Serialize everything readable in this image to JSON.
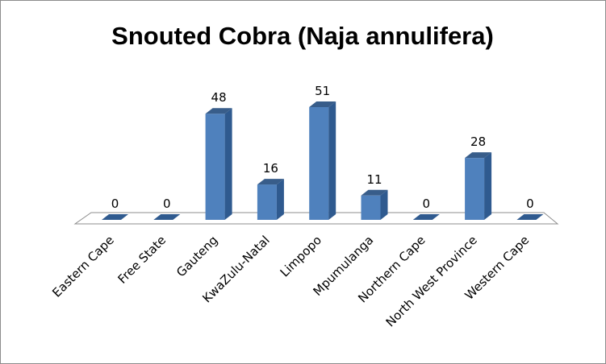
{
  "chart_data": {
    "type": "bar",
    "title": "Snouted Cobra (Naja annulifera)",
    "categories": [
      "Eastern Cape",
      "Free State",
      "Gauteng",
      "KwaZulu-Natal",
      "Limpopo",
      "Mpumulanga",
      "Northern Cape",
      "North West Province",
      "Western Cape"
    ],
    "series": [
      {
        "values": [
          0,
          0,
          48,
          16,
          51,
          11,
          0,
          28,
          0
        ],
        "color": "#4f81bd"
      }
    ],
    "data_labels": [
      "0",
      "0",
      "48",
      "16",
      "51",
      "11",
      "0",
      "28",
      "0"
    ],
    "ylim": [
      0,
      51
    ],
    "grid": false,
    "legend": "none",
    "style": "3d-column"
  }
}
